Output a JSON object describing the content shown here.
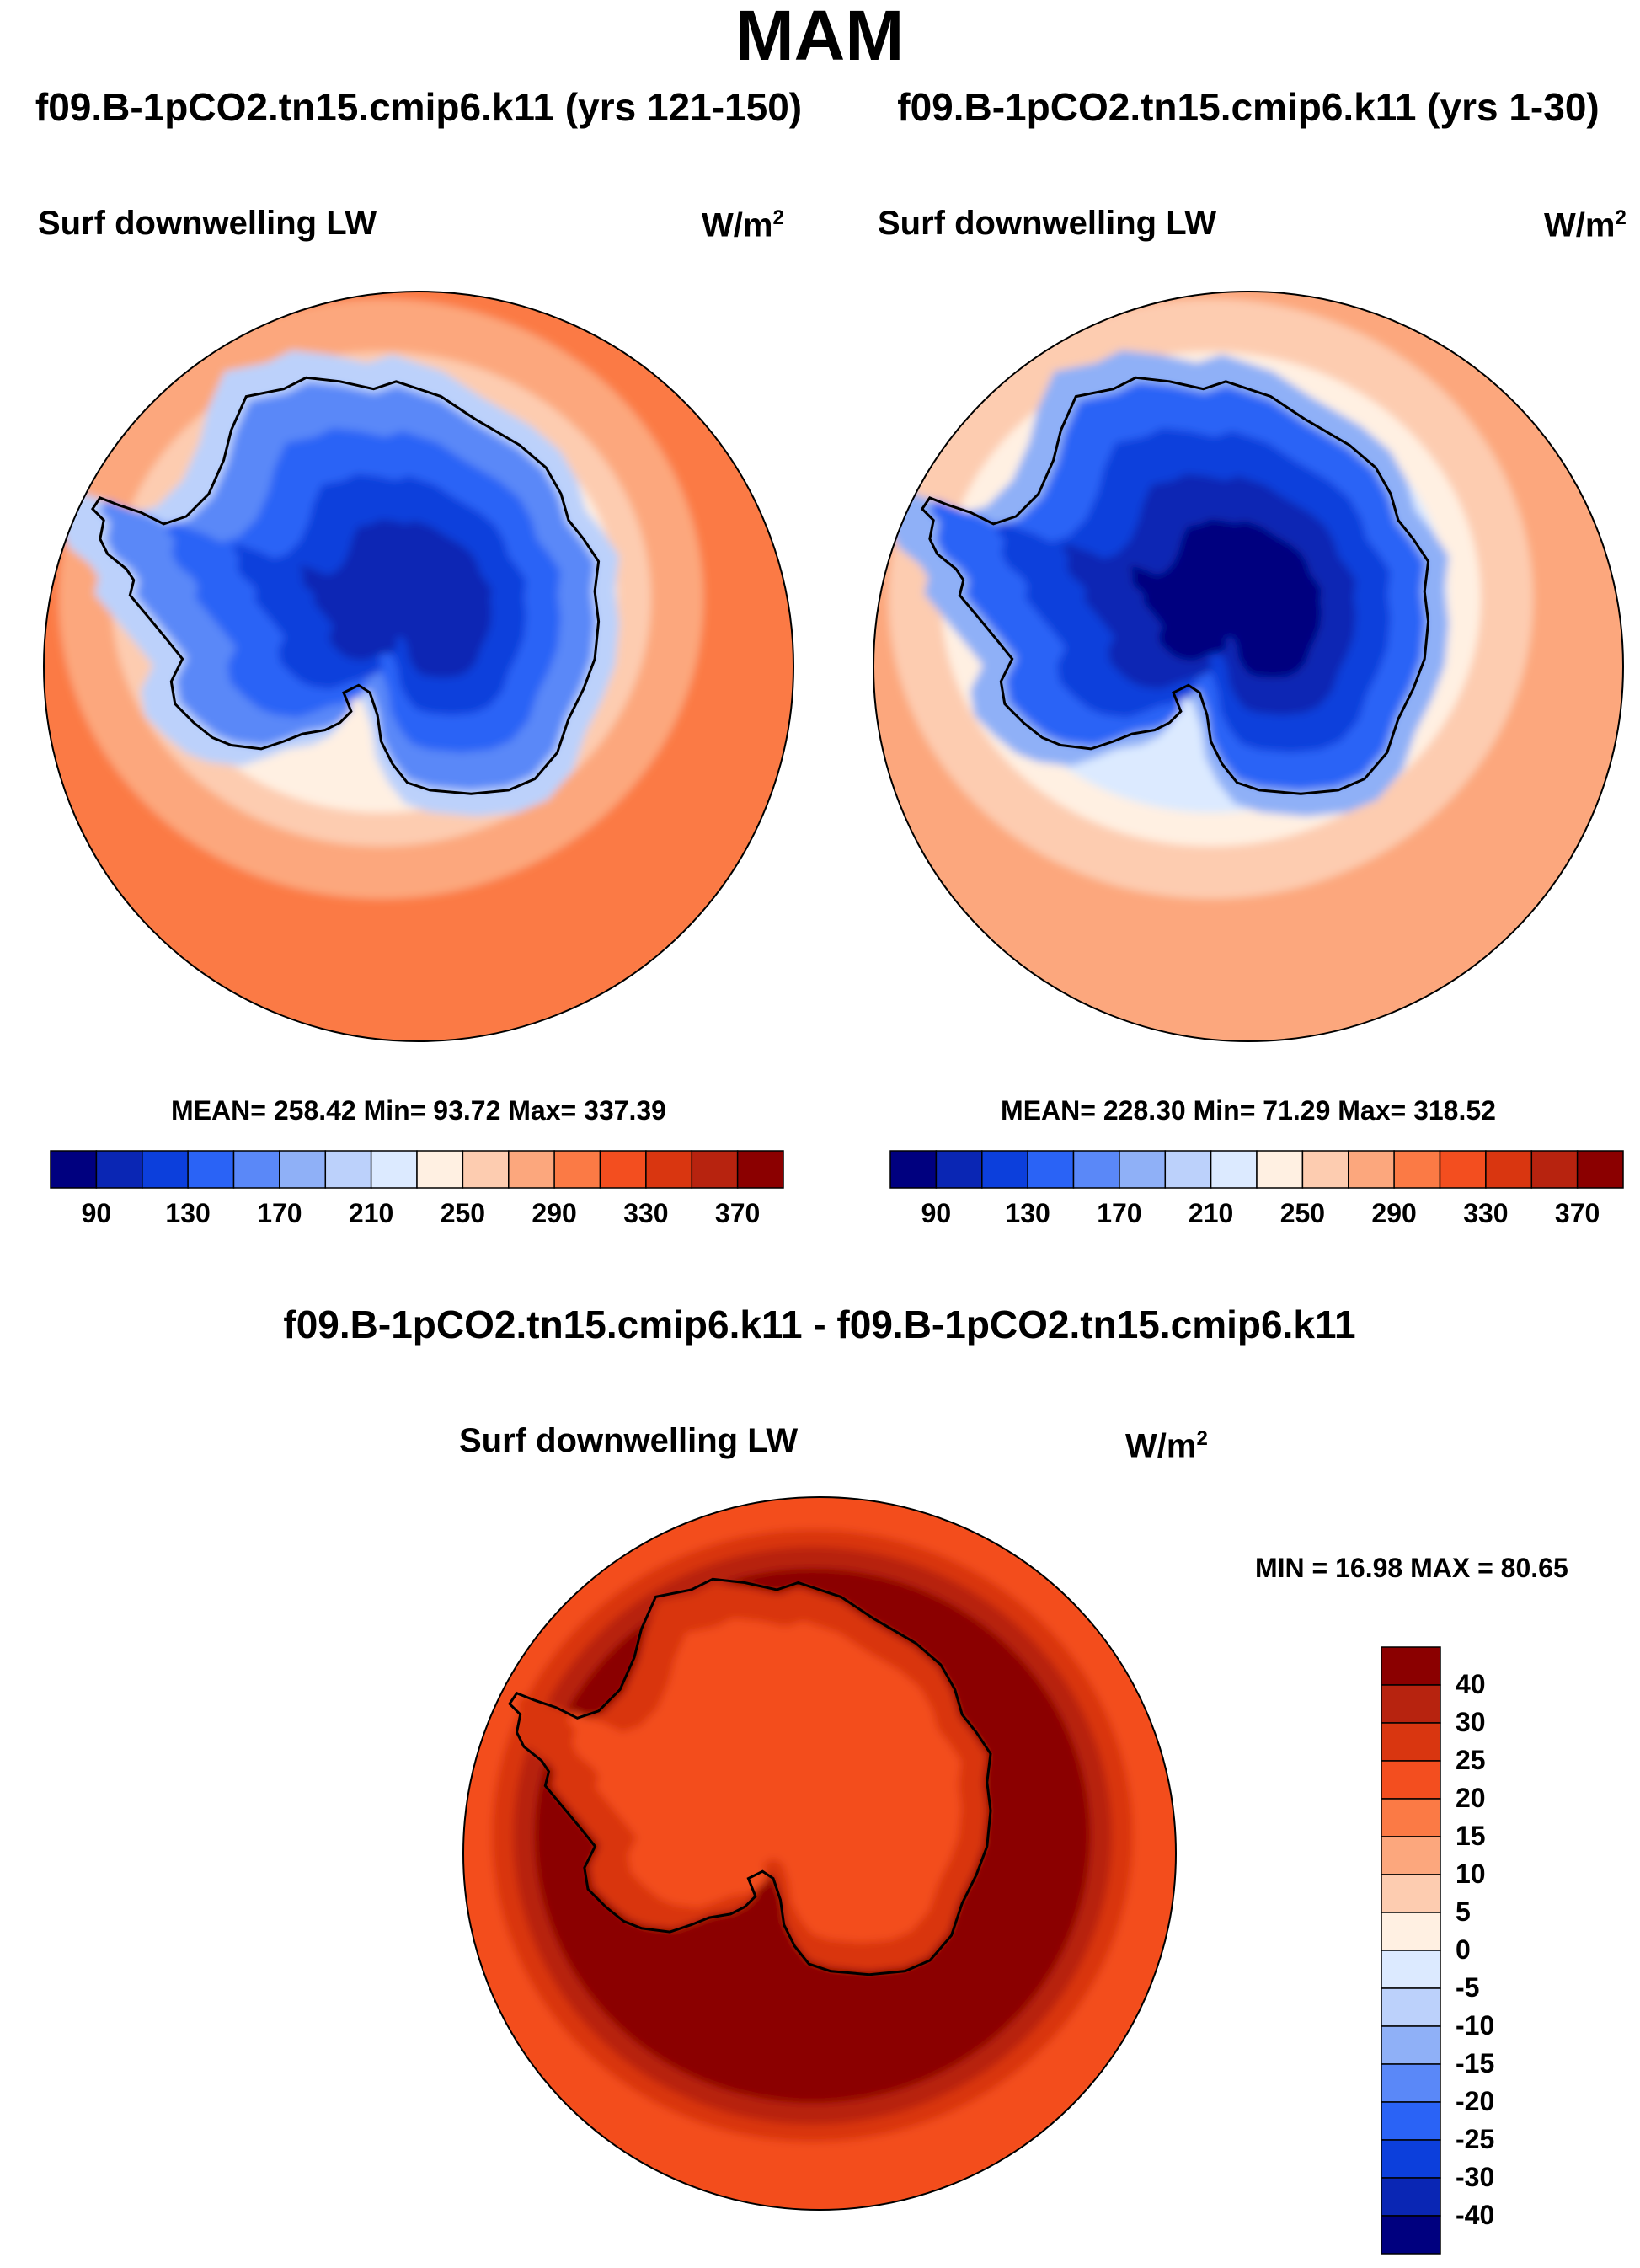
{
  "main_title": "MAM",
  "panels": {
    "left": {
      "title": "f09.B-1pCO2.tn15.cmip6.k11 (yrs 121-150)",
      "variable": "Surf downwelling LW",
      "units": "W/m",
      "units_sup": "2",
      "stats": "MEAN= 258.42  Min=  93.72  Max= 337.39"
    },
    "right": {
      "title": "f09.B-1pCO2.tn15.cmip6.k11 (yrs 1-30)",
      "variable": "Surf downwelling LW",
      "units": "W/m",
      "units_sup": "2",
      "stats": "MEAN= 228.30  Min=  71.29  Max= 318.52"
    },
    "diff": {
      "title": "f09.B-1pCO2.tn15.cmip6.k11 - f09.B-1pCO2.tn15.cmip6.k11",
      "variable": "Surf downwelling LW",
      "units": "W/m",
      "units_sup": "2",
      "stats": "MIN =  16.98 MAX =  80.65"
    }
  },
  "colors": {
    "abs_scale": [
      "#00007f",
      "#0a26b4",
      "#0c3fdc",
      "#2a63f6",
      "#5a88f8",
      "#8fb0f7",
      "#bcd1fb",
      "#dceaff",
      "#fff0e2",
      "#fdccb0",
      "#fca77d",
      "#fb7a45",
      "#f34e1f",
      "#d93610",
      "#b7230f",
      "#8b0000"
    ],
    "diff_scale": [
      "#8b0000",
      "#b7230f",
      "#d93610",
      "#f34e1f",
      "#fb7a45",
      "#fca77d",
      "#fdccb0",
      "#fff0e2",
      "#dceaff",
      "#bcd1fb",
      "#8fb0f7",
      "#5a88f8",
      "#2a63f6",
      "#0c3fdc",
      "#0a26b4",
      "#00007f"
    ]
  },
  "chart_data": [
    {
      "type": "heatmap",
      "projection": "south-polar-stereographic",
      "title": "f09.B-1pCO2.tn15.cmip6.k11 (yrs 121-150)",
      "variable": "Surf downwelling LW",
      "units": "W/m2",
      "mean": 258.42,
      "min": 93.72,
      "max": 337.39,
      "colorbar_ticks": [
        "90",
        "130",
        "170",
        "210",
        "250",
        "290",
        "330",
        "370"
      ],
      "colorbar_levels": [
        80,
        90,
        110,
        130,
        150,
        170,
        190,
        210,
        230,
        250,
        270,
        290,
        310,
        330,
        350,
        370,
        380
      ],
      "colorbar_orientation": "horizontal",
      "fills": [
        {
          "zone": "ocean-outer",
          "value": 320
        },
        {
          "zone": "ocean-mid",
          "value": 300
        },
        {
          "zone": "coastal-band",
          "value": 280
        },
        {
          "zone": "sea-ice-edge",
          "value": 255
        },
        {
          "zone": "ice-shelf",
          "value": 215
        },
        {
          "zone": "coastal-plateau",
          "value": 185
        },
        {
          "zone": "plateau-edge",
          "value": 155
        },
        {
          "zone": "plateau-interior",
          "value": 130
        },
        {
          "zone": "plateau-core",
          "value": 110
        }
      ]
    },
    {
      "type": "heatmap",
      "projection": "south-polar-stereographic",
      "title": "f09.B-1pCO2.tn15.cmip6.k11 (yrs 1-30)",
      "variable": "Surf downwelling LW",
      "units": "W/m2",
      "mean": 228.3,
      "min": 71.29,
      "max": 318.52,
      "colorbar_ticks": [
        "90",
        "130",
        "170",
        "210",
        "250",
        "290",
        "330",
        "370"
      ],
      "colorbar_levels": [
        80,
        90,
        110,
        130,
        150,
        170,
        190,
        210,
        230,
        250,
        270,
        290,
        310,
        330,
        350,
        370,
        380
      ],
      "colorbar_orientation": "horizontal",
      "fills": [
        {
          "zone": "ocean-outer",
          "value": 300
        },
        {
          "zone": "ocean-mid",
          "value": 280
        },
        {
          "zone": "coastal-band",
          "value": 262
        },
        {
          "zone": "sea-ice-edge",
          "value": 238
        },
        {
          "zone": "ice-shelf",
          "value": 200
        },
        {
          "zone": "coastal-plateau",
          "value": 160
        },
        {
          "zone": "plateau-edge",
          "value": 135
        },
        {
          "zone": "plateau-interior",
          "value": 112
        },
        {
          "zone": "plateau-core",
          "value": 95
        }
      ]
    },
    {
      "type": "heatmap",
      "projection": "south-polar-stereographic",
      "title": "f09.B-1pCO2.tn15.cmip6.k11 - f09.B-1pCO2.tn15.cmip6.k11",
      "variable": "Surf downwelling LW",
      "units": "W/m2",
      "min": 16.98,
      "max": 80.65,
      "colorbar_ticks": [
        "40",
        "30",
        "25",
        "20",
        "15",
        "10",
        "5",
        "0",
        "-5",
        "-10",
        "-15",
        "-20",
        "-25",
        "-30",
        "-40"
      ],
      "colorbar_orientation": "vertical",
      "fills": [
        {
          "zone": "ocean-outer",
          "value": 22
        },
        {
          "zone": "ocean-mid",
          "value": 27
        },
        {
          "zone": "sea-ice-ring-outer",
          "value": 35
        },
        {
          "zone": "sea-ice-ring",
          "value": 45
        },
        {
          "zone": "antarctica-margin",
          "value": 27
        },
        {
          "zone": "antarctica-interior",
          "value": 22
        }
      ]
    }
  ]
}
